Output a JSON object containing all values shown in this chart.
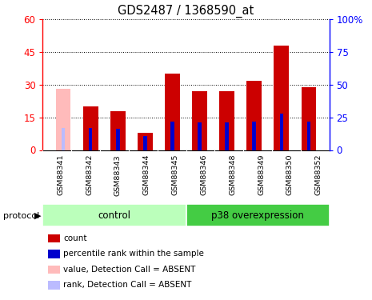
{
  "title": "GDS2487 / 1368590_at",
  "samples": [
    "GSM88341",
    "GSM88342",
    "GSM88343",
    "GSM88344",
    "GSM88345",
    "GSM88346",
    "GSM88348",
    "GSM88349",
    "GSM88350",
    "GSM88352"
  ],
  "count_values": [
    0,
    20,
    18,
    8,
    35,
    27,
    27,
    32,
    48,
    29
  ],
  "rank_values": [
    17,
    17,
    16,
    11,
    22,
    21,
    21,
    22,
    28,
    22
  ],
  "absent_count": [
    28,
    0,
    0,
    0,
    0,
    0,
    0,
    0,
    0,
    0
  ],
  "absent_rank": [
    17,
    0,
    0,
    0,
    0,
    0,
    0,
    0,
    0,
    0
  ],
  "is_absent": [
    true,
    false,
    false,
    false,
    false,
    false,
    false,
    false,
    false,
    false
  ],
  "groups": [
    {
      "label": "control",
      "start": 0,
      "end": 5,
      "color": "#bbffbb"
    },
    {
      "label": "p38 overexpression",
      "start": 5,
      "end": 10,
      "color": "#44cc44"
    }
  ],
  "left_ylim": [
    0,
    60
  ],
  "right_ylim": [
    0,
    100
  ],
  "left_yticks": [
    0,
    15,
    30,
    45,
    60
  ],
  "right_yticks": [
    0,
    25,
    50,
    75,
    100
  ],
  "bar_color_count": "#cc0000",
  "bar_color_rank": "#0000cc",
  "bar_color_absent_count": "#ffbbbb",
  "bar_color_absent_rank": "#bbbbff",
  "bar_width": 0.55,
  "rank_bar_width": 0.13,
  "bg_color": "#d8d8d8",
  "group_bg": "#e8e8e8"
}
